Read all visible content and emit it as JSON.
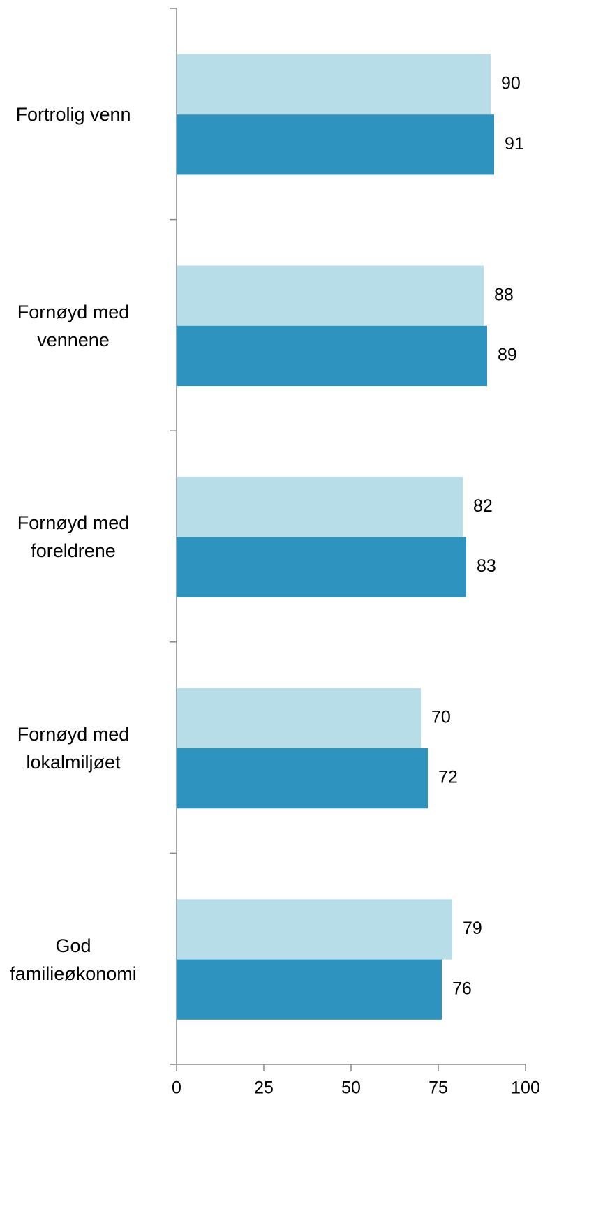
{
  "chart_data": {
    "type": "bar",
    "orientation": "horizontal",
    "categories": [
      "Fortrolig venn",
      "Fornøyd med\nvennene",
      "Fornøyd med\nforeldrene",
      "Fornøyd med\nlokalmiljøet",
      "God\nfamilieøkonomi"
    ],
    "series": [
      {
        "color": "#b7dde8",
        "values": [
          90,
          88,
          82,
          70,
          79
        ]
      },
      {
        "color": "#2e93bf",
        "values": [
          91,
          89,
          83,
          72,
          76
        ]
      }
    ],
    "xlim": [
      0,
      100
    ],
    "xticks": [
      0,
      25,
      50,
      75,
      100
    ],
    "grid": false
  }
}
